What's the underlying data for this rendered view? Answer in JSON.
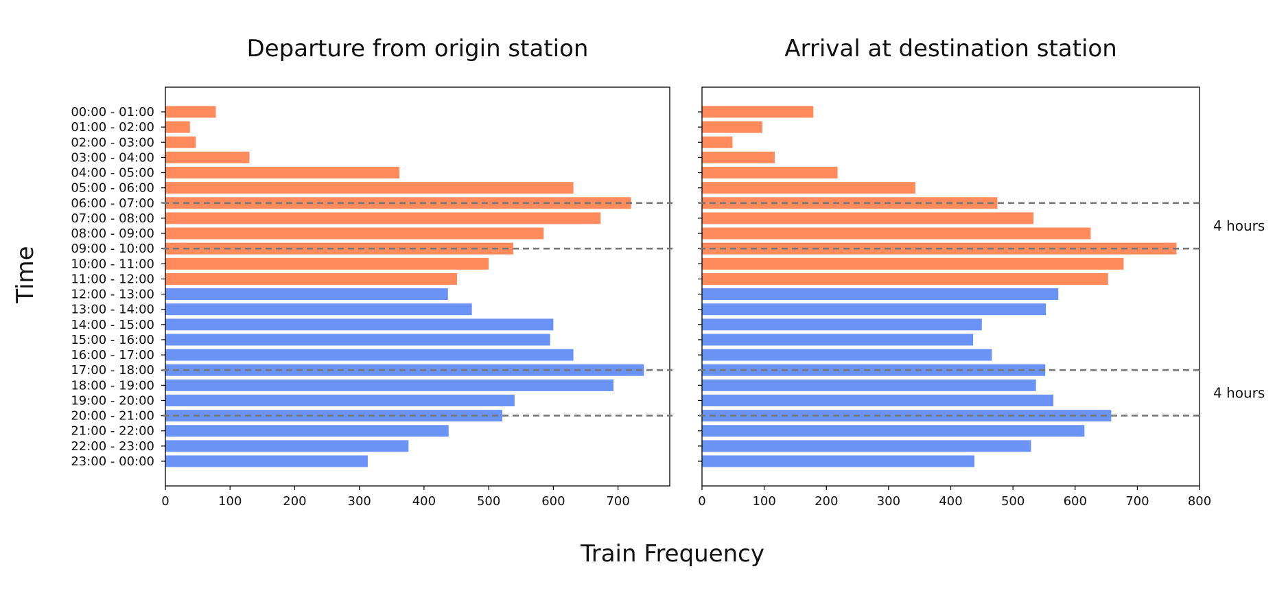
{
  "chart_data": {
    "type": "bar",
    "orientation": "horizontal",
    "categories": [
      "00:00 - 01:00",
      "01:00 - 02:00",
      "02:00 - 03:00",
      "03:00 - 04:00",
      "04:00 - 05:00",
      "05:00 - 06:00",
      "06:00 - 07:00",
      "07:00 - 08:00",
      "08:00 - 09:00",
      "09:00 - 10:00",
      "10:00 - 11:00",
      "11:00 - 12:00",
      "12:00 - 13:00",
      "13:00 - 14:00",
      "14:00 - 15:00",
      "15:00 - 16:00",
      "16:00 - 17:00",
      "17:00 - 18:00",
      "18:00 - 19:00",
      "19:00 - 20:00",
      "20:00 - 21:00",
      "21:00 - 22:00",
      "22:00 - 23:00",
      "23:00 - 00:00"
    ],
    "ylabel": "Time",
    "xlabel": "Train Frequency",
    "grid": false,
    "colors": {
      "am": "#ff8a5c",
      "pm": "#6b93f5",
      "reference_line": "#777777"
    },
    "am_pm_split_index": 12,
    "panels": [
      {
        "title": "Departure from origin station",
        "xlim": [
          0,
          780
        ],
        "xticks": [
          0,
          100,
          200,
          300,
          400,
          500,
          600,
          700
        ],
        "values": [
          78,
          38,
          47,
          130,
          362,
          631,
          720,
          673,
          585,
          538,
          500,
          451,
          437,
          474,
          600,
          595,
          631,
          740,
          693,
          540,
          521,
          438,
          376,
          313
        ],
        "reference_lines": [
          6,
          9,
          17,
          20
        ],
        "annotations": []
      },
      {
        "title": "Arrival at destination station",
        "xlim": [
          0,
          800
        ],
        "xticks": [
          0,
          100,
          200,
          300,
          400,
          500,
          600,
          700,
          800
        ],
        "values": [
          179,
          97,
          49,
          117,
          218,
          343,
          475,
          533,
          625,
          763,
          678,
          653,
          573,
          553,
          450,
          436,
          466,
          552,
          537,
          565,
          658,
          615,
          529,
          438
        ],
        "reference_lines": [
          6,
          9,
          17,
          20
        ],
        "annotations": [
          {
            "text": "4 hours",
            "between": [
              6,
              9
            ]
          },
          {
            "text": "4 hours",
            "between": [
              17,
              20
            ]
          }
        ]
      }
    ]
  }
}
